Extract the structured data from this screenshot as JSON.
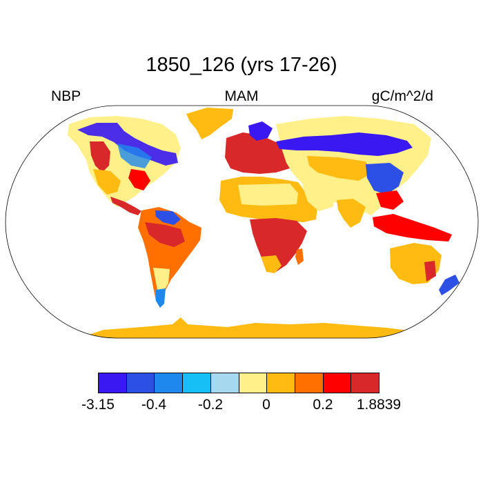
{
  "title": "1850_126 (yrs 17-26)",
  "left_label": "NBP",
  "center_label": "MAM",
  "right_label": "gC/m^2/d",
  "colorbar": {
    "colors": [
      "#3a18f2",
      "#2c4fe6",
      "#1e88ee",
      "#16bff5",
      "#a6d8f0",
      "#fff08a",
      "#ffbb12",
      "#ff7000",
      "#ff0000",
      "#d8282a"
    ],
    "tick_labels": [
      "-3.15",
      "-0.4",
      "-0.2",
      "0",
      "0.2",
      "1.8839"
    ]
  },
  "colors": {
    "ocean": "#ffffff",
    "coastline": "#000000"
  }
}
